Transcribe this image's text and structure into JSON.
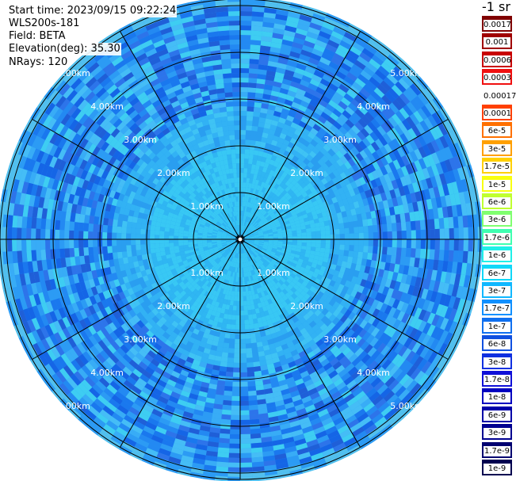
{
  "info": {
    "start_time": "Start time: 2023/09/15 09:22:24",
    "instrument": "WLS200s-181",
    "field": "Field: BETA",
    "elevation": "Elevation(deg): 35.30",
    "nrays": "NRays: 120"
  },
  "range_labels": [
    "1.00km",
    "2.00km",
    "3.00km",
    "4.00km",
    "5.00km"
  ],
  "colorbar": {
    "title": "-1 sr",
    "labels": [
      "0.0017",
      "0.001",
      "0.0006",
      "0.0003",
      "0.00017",
      "0.0001",
      "6e-5",
      "3e-5",
      "1.7e-5",
      "1e-5",
      "6e-6",
      "3e-6",
      "1.7e-6",
      "1e-6",
      "6e-7",
      "3e-7",
      "1.7e-7",
      "1e-7",
      "6e-8",
      "3e-8",
      "1.7e-8",
      "1e-8",
      "6e-9",
      "3e-9",
      "1.7e-9",
      "1e-9"
    ],
    "colors": [
      "#800000",
      "#a00000",
      "#c80000",
      "#f01010",
      "#ffffff",
      "#ff4000",
      "#ff7000",
      "#ffa000",
      "#ffd000",
      "#f8ff10",
      "#c0ff30",
      "#80ff70",
      "#40ffb0",
      "#20f0e8",
      "#10d8f8",
      "#10b8ff",
      "#1090ff",
      "#1070f0",
      "#1050e0",
      "#1030e0",
      "#1010d8",
      "#0000c0",
      "#0000a8",
      "#000090",
      "#000070",
      "#000050"
    ]
  },
  "colors": {
    "ring_line": "#000000",
    "inner_field": "#38c8f4",
    "mid_field": "#2a9ef0",
    "outer_field": "#1f7fea",
    "edge_field": "#52c0ee"
  }
}
